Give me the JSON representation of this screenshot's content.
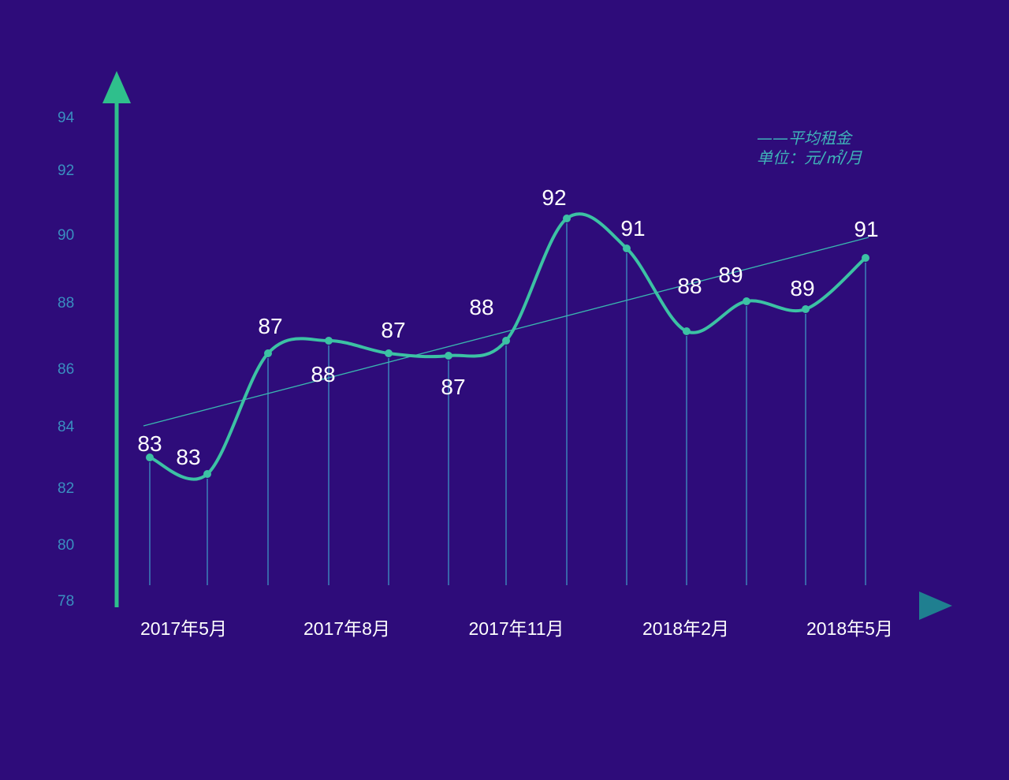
{
  "chart_data": {
    "type": "line",
    "x_labels": [
      "2017年5月",
      "2017年8月",
      "2017年11月",
      "2018年2月",
      "2018年5月"
    ],
    "y_ticks": [
      94,
      92,
      90,
      88,
      86,
      84,
      82,
      80,
      78
    ],
    "series": [
      {
        "name": "平均租金",
        "values": [
          83,
          83,
          87,
          88,
          87,
          87,
          88,
          92,
          91,
          88,
          89,
          89,
          91
        ],
        "labels": [
          "83",
          "83",
          "87",
          "88",
          "87",
          "87",
          "88",
          "92",
          "91",
          "88",
          "89",
          "89",
          "91"
        ]
      }
    ],
    "trendline": true,
    "legend": {
      "line_text": "——平均租金",
      "unit_text": "单位：元/㎡/月",
      "position": "top-right"
    },
    "colors": {
      "background": "#2e0c7a",
      "line": "#3cc2a4",
      "axis": "#2fbf8c",
      "tick": "#3a8fc0",
      "label": "#ffffff"
    }
  }
}
